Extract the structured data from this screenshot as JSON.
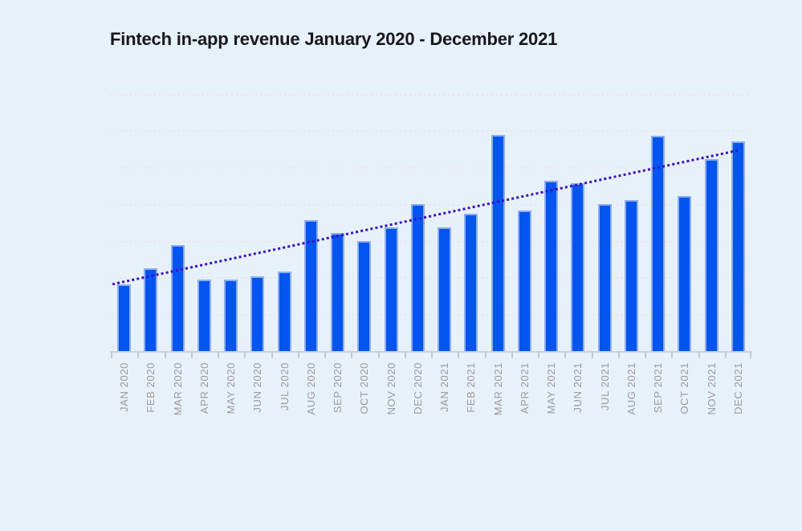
{
  "header": {
    "title": "Fintech in-app revenue January 2020 - December 2021"
  },
  "chart_data": {
    "type": "bar",
    "title": "Fintech in-app revenue January 2020 - December 2021",
    "categories": [
      "JAN 2020",
      "FEB 2020",
      "MAR 2020",
      "APR 2020",
      "MAY 2020",
      "JUN 2020",
      "JUL 2020",
      "AUG 2020",
      "SEP 2020",
      "OCT 2020",
      "NOV 2020",
      "DEC 2020",
      "JAN 2021",
      "FEB 2021",
      "MAR 2021",
      "APR 2021",
      "MAY 2021",
      "JUN 2021",
      "JUL 2021",
      "AUG 2021",
      "SEP 2021",
      "OCT 2021",
      "NOV 2021",
      "DEC 2021"
    ],
    "values": [
      18.4,
      22.7,
      29.0,
      19.7,
      19.7,
      20.5,
      21.9,
      35.9,
      32.4,
      30.2,
      33.8,
      40.2,
      33.8,
      37.5,
      59.0,
      38.5,
      46.6,
      45.9,
      40.2,
      41.3,
      58.8,
      42.4,
      52.4,
      57.3
    ],
    "value_note": "y-axis has no visible labels; values estimated in relative units where one gridline interval = 10",
    "xlabel": "",
    "ylabel": "",
    "ylim": [
      0,
      70
    ],
    "gridline_step": 10,
    "grid": "horizontal dotted, no y-axis tick labels",
    "legend": "none",
    "trendline": {
      "type": "linear",
      "style": "dotted",
      "start_value": 18.4,
      "end_value": 54.8
    },
    "colors": {
      "background": "#e7f1fa",
      "bar_fill": "#0455f0",
      "bar_edge": "#8fadf2",
      "trendline": "#3d10c4",
      "gridline": "#efe2e0",
      "axis_line": "#ccd0d4",
      "tick_label": "#9b9b9b",
      "title": "#17181c"
    }
  }
}
